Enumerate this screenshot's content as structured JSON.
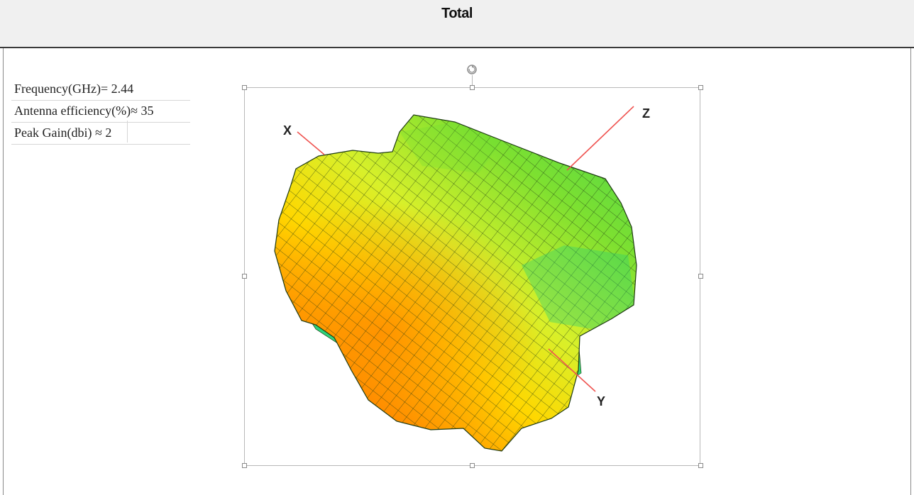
{
  "header": {
    "title": "Total"
  },
  "info": [
    {
      "label": "Frequency(GHz)= 2.44"
    },
    {
      "label": "Antenna efficiency(%)≈ 35"
    },
    {
      "label": "Peak Gain(dbi) ≈ 2"
    }
  ],
  "plot": {
    "axes": {
      "x": "X",
      "y": "Y",
      "z": "Z"
    },
    "axis_color": "#ef5350",
    "surface_colors": [
      "#ff8c00",
      "#ffd700",
      "#ffff33",
      "#b4ea2e",
      "#55dd33",
      "#22cc66"
    ],
    "mesh_color": "#1e3a12"
  }
}
